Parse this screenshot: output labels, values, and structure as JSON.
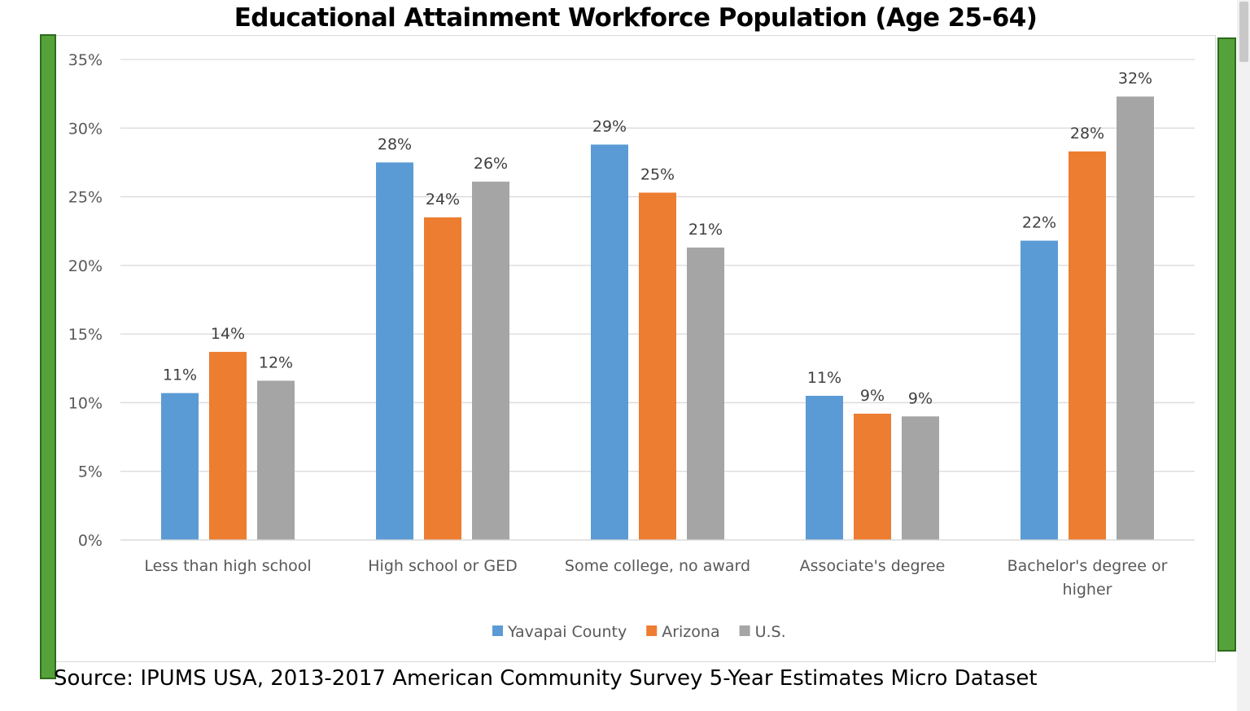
{
  "source_note": "Source:  IPUMS USA, 2013-2017 American Community Survey 5-Year Estimates Micro Dataset",
  "chart_data": {
    "type": "bar",
    "title": "Educational Attainment Workforce Population (Age 25-64)",
    "xlabel": "",
    "ylabel": "",
    "ylim": [
      0,
      35
    ],
    "y_ticks": [
      "0%",
      "5%",
      "10%",
      "15%",
      "20%",
      "25%",
      "30%",
      "35%"
    ],
    "grid": true,
    "legend_position": "bottom",
    "categories": [
      [
        "Less than high school"
      ],
      [
        "High school or GED"
      ],
      [
        "Some college, no award"
      ],
      [
        "Associate's degree"
      ],
      [
        "Bachelor's degree or",
        "higher"
      ]
    ],
    "series": [
      {
        "name": "Yavapai County",
        "color": "#5b9bd5",
        "values": [
          10.7,
          27.5,
          28.8,
          10.5,
          21.8
        ],
        "labels": [
          "11%",
          "28%",
          "29%",
          "11%",
          "22%"
        ]
      },
      {
        "name": "Arizona",
        "color": "#ed7d31",
        "values": [
          13.7,
          23.5,
          25.3,
          9.2,
          28.3
        ],
        "labels": [
          "14%",
          "24%",
          "25%",
          "9%",
          "28%"
        ]
      },
      {
        "name": "U.S.",
        "color": "#a5a5a5",
        "values": [
          11.6,
          26.1,
          21.3,
          9.0,
          32.3
        ],
        "labels": [
          "12%",
          "26%",
          "21%",
          "9%",
          "32%"
        ]
      }
    ]
  }
}
